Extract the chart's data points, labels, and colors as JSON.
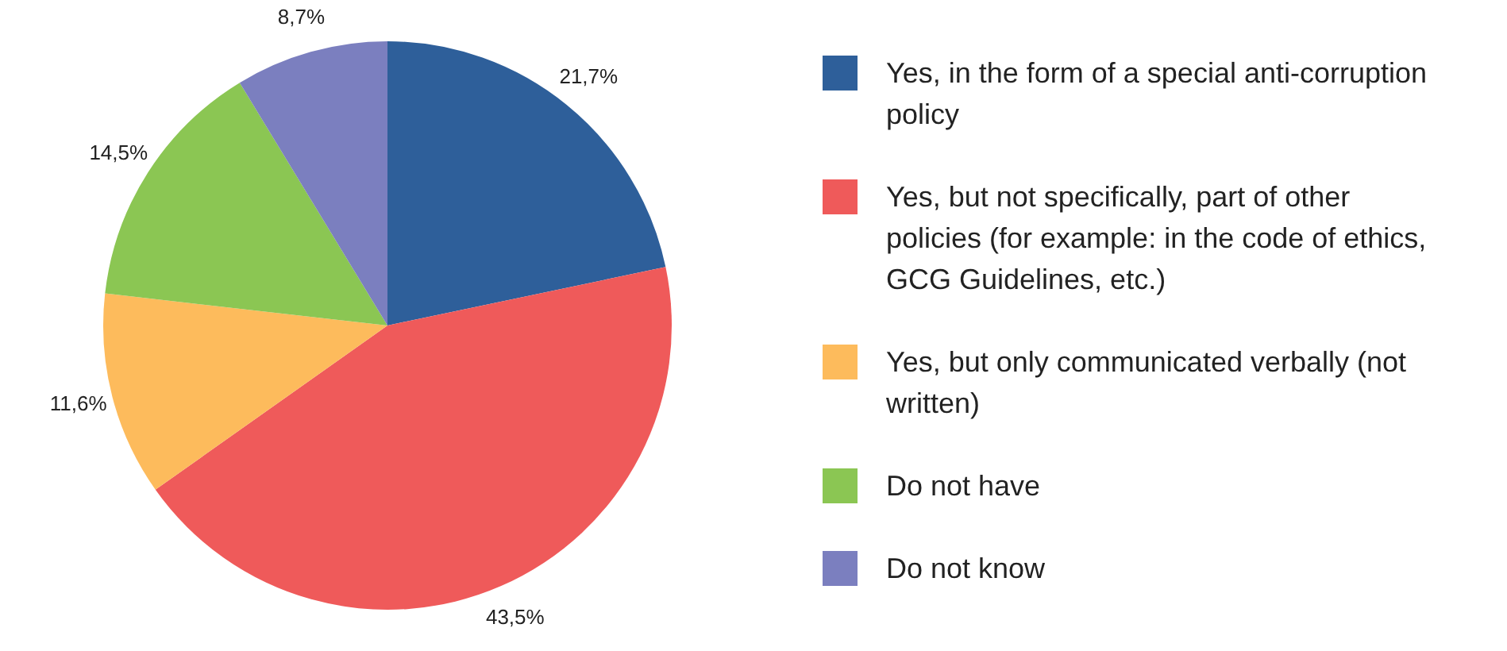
{
  "chart_data": {
    "type": "pie",
    "categories": [
      "Yes, in the form of a special anti-corruption policy",
      "Yes, but not specifically, part of other policies (for example: in the code of ethics, GCG Guidelines, etc.)",
      "Yes, but only communicated verbally (not written)",
      "Do not have",
      "Do not know"
    ],
    "values": [
      21.7,
      43.5,
      11.6,
      14.5,
      8.7
    ],
    "value_labels": [
      "21,7%",
      "43,5%",
      "11,6%",
      "14,5%",
      "8,7%"
    ],
    "colors": [
      "#2e5f9a",
      "#ef5a5a",
      "#fdbb5c",
      "#8bc653",
      "#7b7fbf"
    ],
    "legend": "right"
  }
}
